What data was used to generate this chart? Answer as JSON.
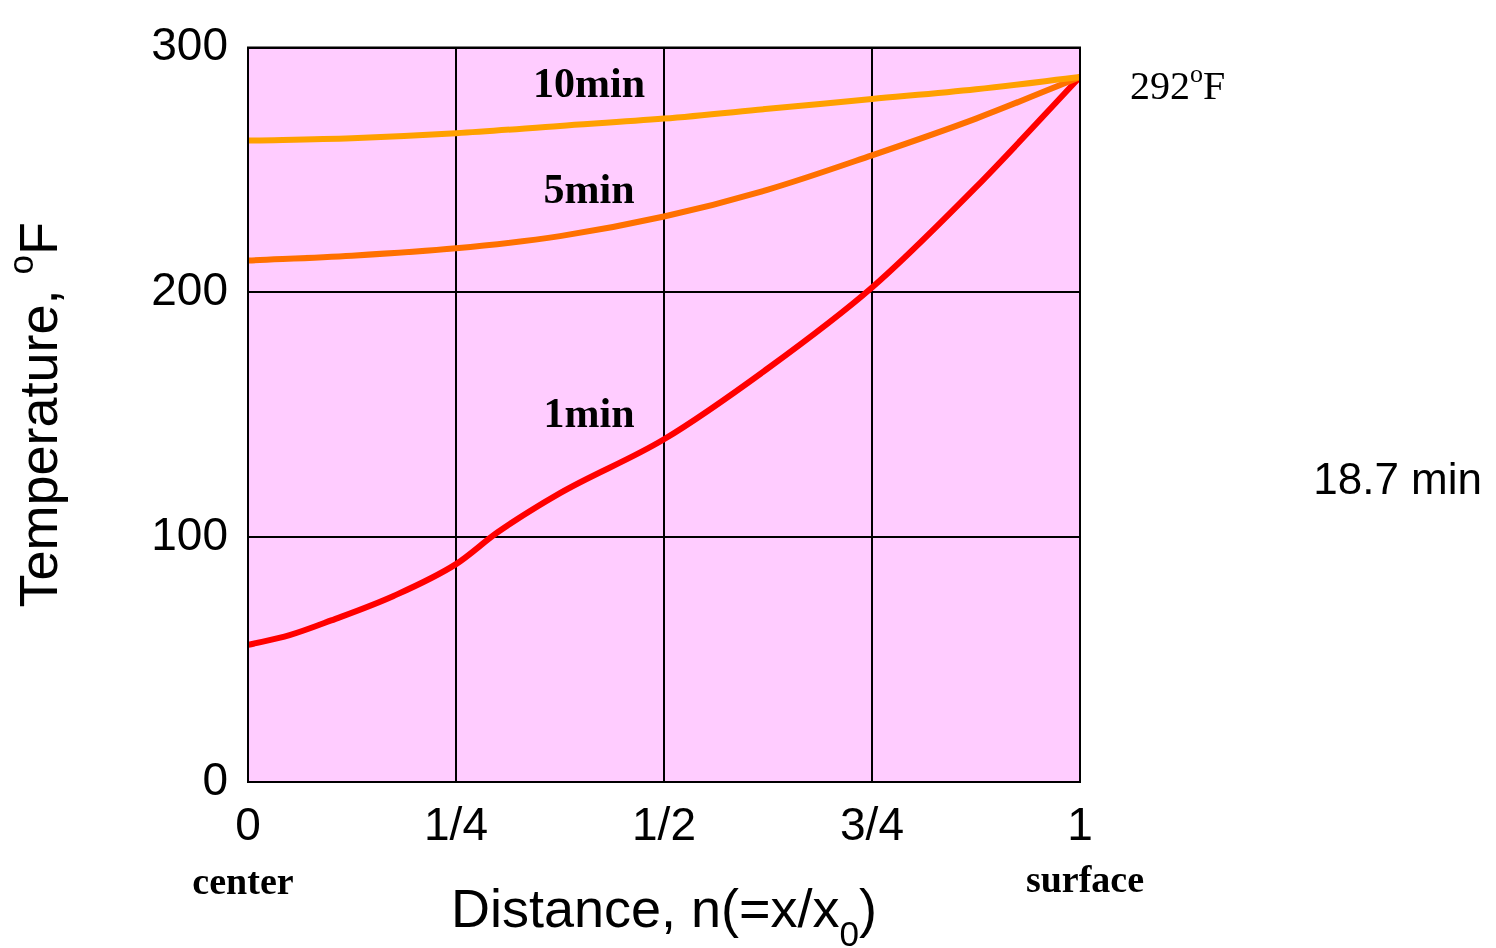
{
  "chart_data": {
    "type": "line",
    "xlabel": "Distance, n(=x/x$_{0}$)",
    "ylabel": "Temperature, $^{o}$F",
    "xlim": [
      0,
      1
    ],
    "xticks": [
      0,
      {
        "value": 0.25,
        "label": "1/4"
      },
      {
        "value": 0.5,
        "label": "1/2"
      },
      {
        "value": 0.75,
        "label": "3/4"
      },
      1
    ],
    "ylim": [
      0,
      300
    ],
    "yticks": [
      0,
      100,
      200,
      300
    ],
    "grid": true,
    "legend": false,
    "marker": "none",
    "line_style": "solid",
    "series": [
      {
        "name": "10min",
        "color": "#ffa000",
        "x": [
          0,
          0.125,
          0.25,
          0.375,
          0.5,
          0.625,
          0.75,
          0.875,
          1
        ],
        "values": [
          262,
          263,
          265,
          268,
          271,
          275,
          279,
          283,
          288
        ]
      },
      {
        "name": "5min",
        "color": "#ff7000",
        "x": [
          0,
          0.125,
          0.25,
          0.375,
          0.5,
          0.625,
          0.75,
          0.875,
          1
        ],
        "values": [
          213,
          215,
          218,
          223,
          231,
          242,
          256,
          271,
          288
        ]
      },
      {
        "name": "1min",
        "color": "#ff0000",
        "x": [
          0,
          0.05,
          0.1,
          0.175,
          0.25,
          0.3,
          0.375,
          0.5,
          0.625,
          0.75,
          0.875,
          1
        ],
        "values": [
          56,
          60,
          66,
          76,
          89,
          102,
          118,
          140,
          169,
          202,
          243,
          288
        ]
      }
    ],
    "annotations": [
      "center",
      "surface",
      {
        "text": "292$^{o}$F",
        "x": 1,
        "y": 288
      },
      "18.7 min"
    ]
  }
}
